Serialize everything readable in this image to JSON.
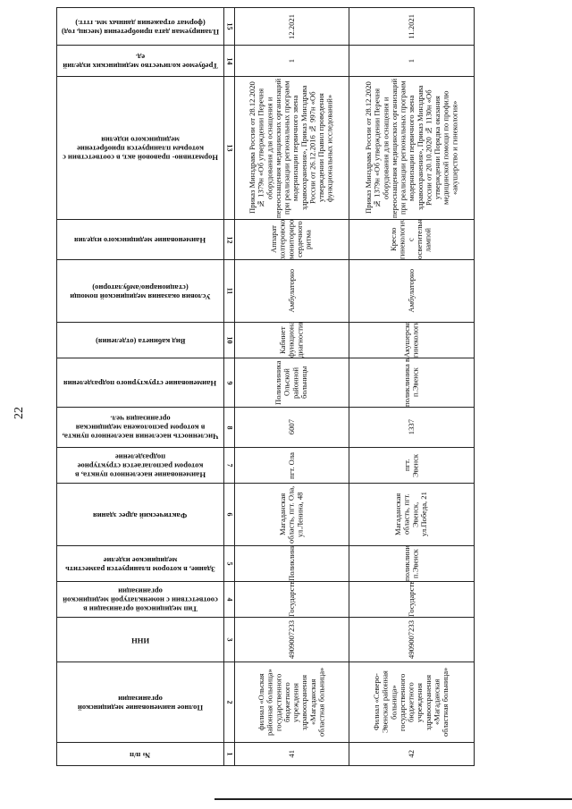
{
  "page_number": "22",
  "headers": [
    {
      "no": "1",
      "label": "№ п/п"
    },
    {
      "no": "2",
      "label": "Полное наименование медицинской организации"
    },
    {
      "no": "3",
      "label": "ИНН"
    },
    {
      "no": "4",
      "label": "Тип медицинской организации в соответствии с номенклатурой медицинской организации"
    },
    {
      "no": "5",
      "label": "Здание, в котором планируется разместить медицинское изделие"
    },
    {
      "no": "6",
      "label": "Фактический адрес здания"
    },
    {
      "no": "7",
      "label": "Наименование населенного пункта, в котором располагается структурное подразделение"
    },
    {
      "no": "8",
      "label": "Численность населения населенного пункта, в котором расположена медицинская организация чел."
    },
    {
      "no": "9",
      "label": "Наименование структурного подразделения"
    },
    {
      "no": "10",
      "label": "Вид кабинета (отделения)"
    },
    {
      "no": "11",
      "label": "Условия оказания медицинской помощи (стационарно/амбулаторно)"
    },
    {
      "no": "12",
      "label": "Наименование медицинского изделия"
    },
    {
      "no": "13",
      "label": "Нормативно- правовой акт, в соответствии с которым планируется приобретение медицинского изделия"
    },
    {
      "no": "14",
      "label": "Требуемое количество медицинских изделий ед."
    },
    {
      "no": "15",
      "label": "Планируемая дата приобретения (месяц, год) (формат отражения данных мм. гггг.)"
    }
  ],
  "rows": [
    {
      "cells": [
        "41",
        "филиал «Ольская районная больница» государственного бюджетного учреждения здравоохранения «Магаданская областная больница»",
        "4909007233",
        "Государственная",
        "Поликлиника",
        "Магаданская область, пгт. Ола, ул.Ленина, 48",
        "пгт. Ола",
        "6007",
        "Поликлиника Ольской районной больницы",
        "Кабинет функциональной диагностики",
        "Амбулаторно",
        "Аппарат холтеровского мониторирования сердечного ритма",
        "Приказ Минздрава России от 28.12.2020 № 1379н «Об утверждении Перечня оборудования для оснащения и переоснащения медицинских организаций при реализации региональных программ модернизации первичного звена здравоохранения», Приказ Минздрава России от 26.12.2016 № 997н «Об утверждении Правил проведения функциональных исследований»",
        "1",
        "12.2021"
      ]
    },
    {
      "cells": [
        "42",
        "Филиал «Северо-Эвенская районная больница» государственного бюджетного учреждения здравоохранения «Магаданская областная больница»",
        "4909007233",
        "Государственная",
        "поликлиника п.Эвенск",
        "Магаданская область, пгт. Эвенск, ул.Победа, 21",
        "пгт. Эвенск",
        "1337",
        "поликлиника в п.Эвенск",
        "Акушерско-гинекологическое",
        "Амбулаторно",
        "Кресло гинекологическое с осветительной лампой",
        "Приказ Минздрава России от 28.12.2020 № 1379н «Об утверждении Перечня оборудования для оснащения и переоснащения медицинских организаций при реализации региональных программ модернизации первичного звена здравоохранения», Приказ Минздрава России от 20.10.2020 № 1130н «Об утверждении Порядка оказания медицинской помощи по профилю «акушерство и гинекология»",
        "1",
        "11.2021"
      ]
    }
  ]
}
